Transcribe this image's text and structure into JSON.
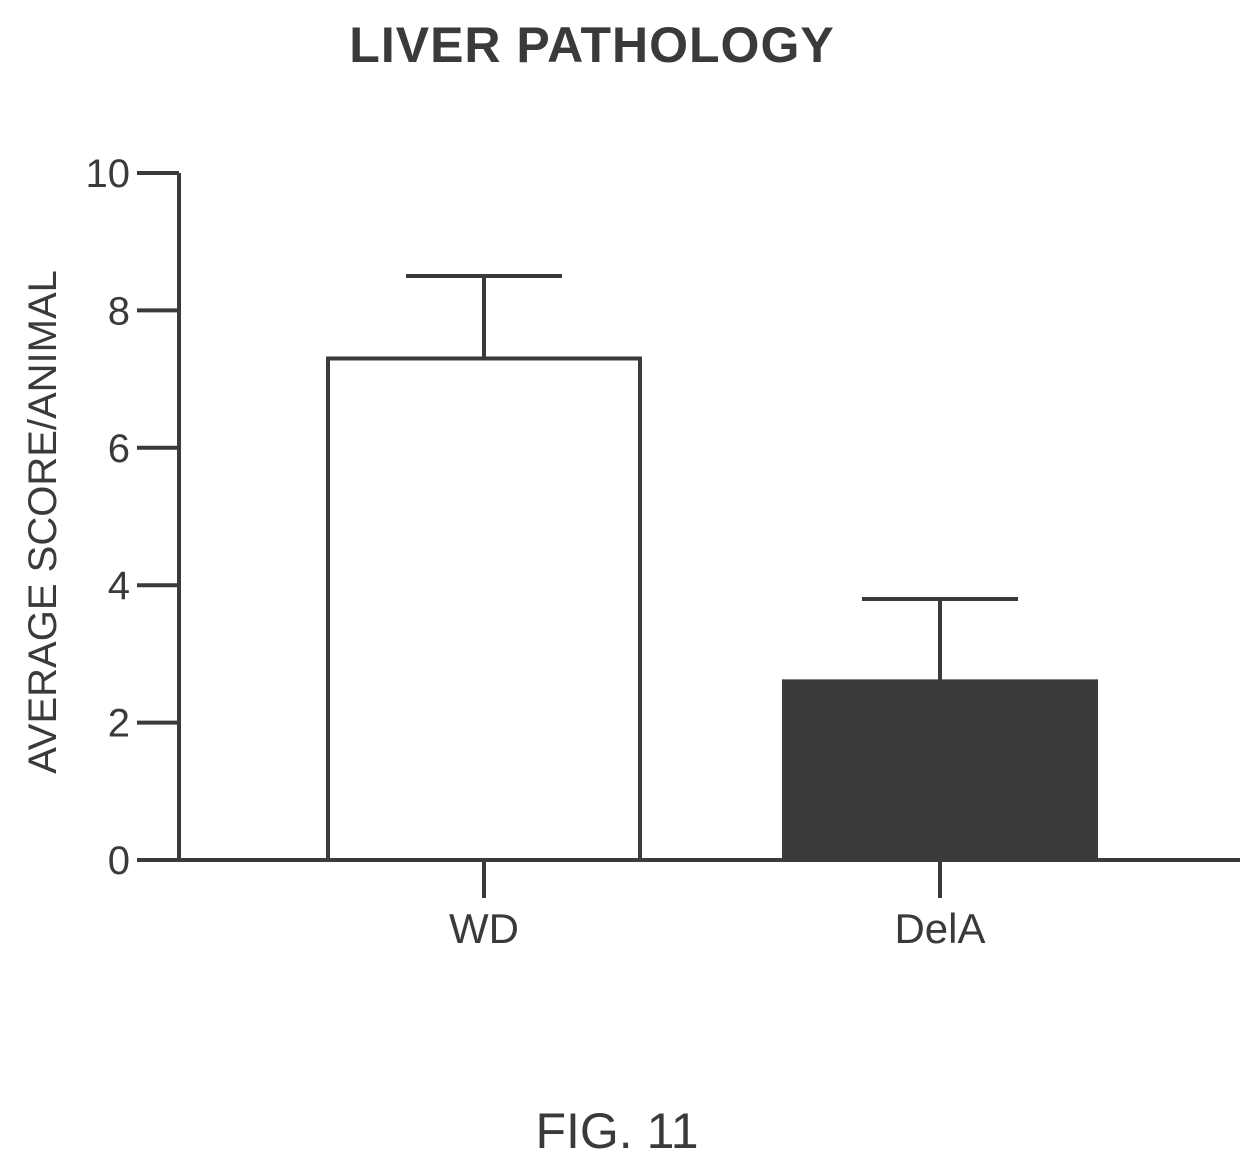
{
  "figure_label": "FIG. 11",
  "colors": {
    "ink": "#3a3a3a",
    "bar_light": "#ffffff",
    "bar_dark": "#3a3a3a"
  },
  "chart_data": {
    "type": "bar",
    "title": "LIVER PATHOLOGY",
    "xlabel": "",
    "ylabel": "AVERAGE SCORE/ANIMAL",
    "ylim": [
      0,
      10
    ],
    "yticks": [
      0,
      2,
      4,
      6,
      8,
      10
    ],
    "categories": [
      "WD",
      "DelA"
    ],
    "values": [
      7.3,
      2.6
    ],
    "error_upper": [
      1.2,
      1.2
    ],
    "bar_fills": [
      "#ffffff",
      "#3a3a3a"
    ],
    "grid": false,
    "legend": "none"
  }
}
